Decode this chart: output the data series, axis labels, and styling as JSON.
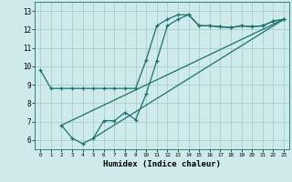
{
  "title": "",
  "xlabel": "Humidex (Indice chaleur)",
  "bg_color": "#ceeaea",
  "grid_color": "#aacfcf",
  "line_color": "#1a7070",
  "xlim": [
    -0.5,
    23.5
  ],
  "ylim": [
    5.5,
    13.5
  ],
  "xticks": [
    0,
    1,
    2,
    3,
    4,
    5,
    6,
    7,
    8,
    9,
    10,
    11,
    12,
    13,
    14,
    15,
    16,
    17,
    18,
    19,
    20,
    21,
    22,
    23
  ],
  "yticks": [
    6,
    7,
    8,
    9,
    10,
    11,
    12,
    13
  ],
  "line1_x": [
    0,
    1,
    2,
    3,
    4,
    5,
    6,
    7,
    8,
    9,
    10,
    11,
    12,
    13,
    14,
    15,
    16,
    17,
    18,
    19,
    20,
    21,
    22,
    23
  ],
  "line1_y": [
    9.8,
    8.8,
    8.8,
    8.8,
    8.8,
    8.8,
    8.8,
    8.8,
    8.8,
    8.8,
    10.35,
    12.2,
    12.55,
    12.8,
    12.8,
    12.2,
    12.2,
    12.15,
    12.1,
    12.2,
    12.15,
    12.2,
    12.45,
    12.55
  ],
  "line2_x": [
    2,
    3,
    4,
    5,
    6,
    7,
    8,
    9,
    10,
    11,
    12,
    13,
    14,
    15,
    16,
    17,
    18,
    19,
    20,
    21,
    22,
    23
  ],
  "line2_y": [
    6.8,
    6.1,
    5.8,
    6.1,
    7.05,
    7.05,
    7.5,
    7.1,
    8.5,
    10.3,
    12.2,
    12.55,
    12.8,
    12.2,
    12.2,
    12.15,
    12.1,
    12.2,
    12.15,
    12.2,
    12.45,
    12.55
  ],
  "line3_x": [
    2,
    23
  ],
  "line3_y": [
    6.8,
    12.55
  ],
  "line4_x": [
    5,
    23
  ],
  "line4_y": [
    6.1,
    12.55
  ]
}
